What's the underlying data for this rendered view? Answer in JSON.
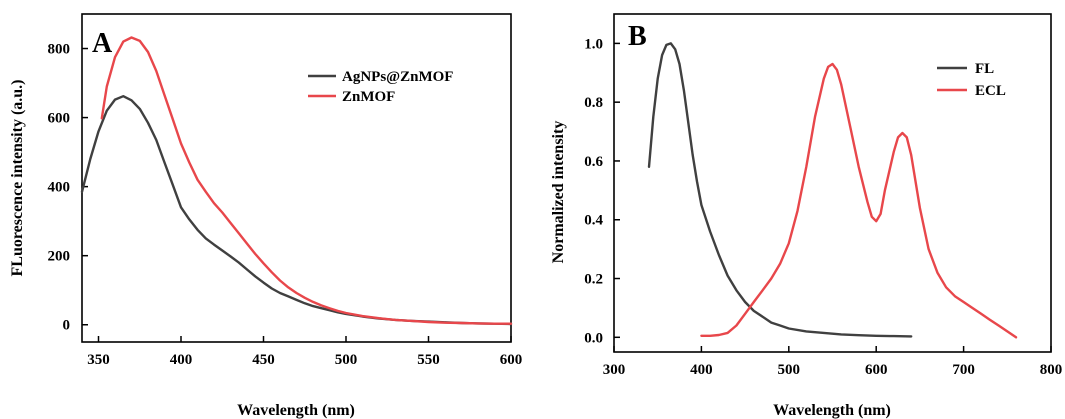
{
  "chart_data": [
    {
      "panel": "A",
      "type": "line",
      "xlabel": "Wavelength (nm)",
      "ylabel": "FLuorescence  intensity (a.u.)",
      "xlim": [
        340,
        600
      ],
      "ylim": [
        -50,
        900
      ],
      "xticks": [
        350,
        400,
        450,
        500,
        550,
        600
      ],
      "yticks": [
        0,
        200,
        400,
        600,
        800
      ],
      "legend_position": "upper right",
      "grid": false,
      "series": [
        {
          "name": "AgNPs@ZnMOF",
          "color": "#404040",
          "points": [
            [
              340,
              385
            ],
            [
              345,
              480
            ],
            [
              350,
              560
            ],
            [
              355,
              620
            ],
            [
              360,
              652
            ],
            [
              365,
              662
            ],
            [
              370,
              650
            ],
            [
              375,
              625
            ],
            [
              380,
              585
            ],
            [
              385,
              535
            ],
            [
              390,
              470
            ],
            [
              395,
              405
            ],
            [
              400,
              340
            ],
            [
              405,
              305
            ],
            [
              410,
              275
            ],
            [
              415,
              250
            ],
            [
              420,
              232
            ],
            [
              425,
              215
            ],
            [
              430,
              198
            ],
            [
              435,
              180
            ],
            [
              440,
              160
            ],
            [
              445,
              140
            ],
            [
              450,
              122
            ],
            [
              455,
              105
            ],
            [
              460,
              92
            ],
            [
              465,
              82
            ],
            [
              470,
              72
            ],
            [
              475,
              62
            ],
            [
              480,
              54
            ],
            [
              485,
              48
            ],
            [
              490,
              42
            ],
            [
              495,
              36
            ],
            [
              500,
              31
            ],
            [
              510,
              24
            ],
            [
              520,
              18
            ],
            [
              530,
              14
            ],
            [
              540,
              11
            ],
            [
              550,
              9
            ],
            [
              560,
              7
            ],
            [
              570,
              5
            ],
            [
              580,
              4
            ],
            [
              590,
              3
            ],
            [
              600,
              2
            ]
          ]
        },
        {
          "name": "ZnMOF",
          "color": "#e8474b",
          "points": [
            [
              352,
              598
            ],
            [
              355,
              690
            ],
            [
              360,
              775
            ],
            [
              365,
              820
            ],
            [
              370,
              832
            ],
            [
              375,
              822
            ],
            [
              380,
              790
            ],
            [
              385,
              735
            ],
            [
              390,
              665
            ],
            [
              395,
              595
            ],
            [
              400,
              525
            ],
            [
              405,
              470
            ],
            [
              410,
              420
            ],
            [
              415,
              385
            ],
            [
              420,
              352
            ],
            [
              425,
              325
            ],
            [
              430,
              295
            ],
            [
              435,
              265
            ],
            [
              440,
              235
            ],
            [
              445,
              205
            ],
            [
              450,
              178
            ],
            [
              455,
              152
            ],
            [
              460,
              128
            ],
            [
              465,
              108
            ],
            [
              470,
              92
            ],
            [
              475,
              78
            ],
            [
              480,
              66
            ],
            [
              485,
              56
            ],
            [
              490,
              48
            ],
            [
              495,
              40
            ],
            [
              500,
              34
            ],
            [
              510,
              25
            ],
            [
              520,
              19
            ],
            [
              530,
              14
            ],
            [
              540,
              11
            ],
            [
              550,
              8
            ],
            [
              560,
              6
            ],
            [
              570,
              5
            ],
            [
              580,
              4
            ],
            [
              590,
              3
            ],
            [
              600,
              3
            ]
          ]
        }
      ]
    },
    {
      "panel": "B",
      "type": "line",
      "xlabel": "Wavelength (nm)",
      "ylabel": "Normalized  intensity",
      "xlim": [
        300,
        800
      ],
      "ylim": [
        -0.05,
        1.1
      ],
      "xticks": [
        300,
        400,
        500,
        600,
        700,
        800
      ],
      "yticks": [
        0.0,
        0.2,
        0.4,
        0.6,
        0.8,
        1.0
      ],
      "ytick_labels": [
        "0.0",
        "0.2",
        "0.4",
        "0.6",
        "0.8",
        "1.0"
      ],
      "legend_position": "upper right",
      "grid": false,
      "series": [
        {
          "name": "FL",
          "color": "#404040",
          "points": [
            [
              340,
              0.58
            ],
            [
              345,
              0.75
            ],
            [
              350,
              0.88
            ],
            [
              355,
              0.96
            ],
            [
              360,
              0.995
            ],
            [
              365,
              1.0
            ],
            [
              370,
              0.98
            ],
            [
              375,
              0.93
            ],
            [
              380,
              0.84
            ],
            [
              385,
              0.73
            ],
            [
              390,
              0.62
            ],
            [
              395,
              0.53
            ],
            [
              400,
              0.45
            ],
            [
              410,
              0.36
            ],
            [
              420,
              0.28
            ],
            [
              430,
              0.21
            ],
            [
              440,
              0.16
            ],
            [
              450,
              0.12
            ],
            [
              460,
              0.09
            ],
            [
              470,
              0.07
            ],
            [
              480,
              0.05
            ],
            [
              490,
              0.04
            ],
            [
              500,
              0.03
            ],
            [
              520,
              0.02
            ],
            [
              540,
              0.015
            ],
            [
              560,
              0.01
            ],
            [
              580,
              0.007
            ],
            [
              600,
              0.005
            ],
            [
              620,
              0.004
            ],
            [
              640,
              0.003
            ]
          ]
        },
        {
          "name": "ECL",
          "color": "#e8474b",
          "points": [
            [
              400,
              0.005
            ],
            [
              410,
              0.005
            ],
            [
              420,
              0.008
            ],
            [
              430,
              0.015
            ],
            [
              440,
              0.04
            ],
            [
              450,
              0.08
            ],
            [
              460,
              0.12
            ],
            [
              470,
              0.16
            ],
            [
              480,
              0.2
            ],
            [
              490,
              0.25
            ],
            [
              500,
              0.32
            ],
            [
              510,
              0.43
            ],
            [
              520,
              0.58
            ],
            [
              530,
              0.75
            ],
            [
              540,
              0.88
            ],
            [
              545,
              0.92
            ],
            [
              550,
              0.93
            ],
            [
              555,
              0.91
            ],
            [
              560,
              0.86
            ],
            [
              570,
              0.72
            ],
            [
              580,
              0.58
            ],
            [
              590,
              0.46
            ],
            [
              595,
              0.41
            ],
            [
              600,
              0.395
            ],
            [
              605,
              0.42
            ],
            [
              610,
              0.5
            ],
            [
              620,
              0.63
            ],
            [
              625,
              0.68
            ],
            [
              630,
              0.695
            ],
            [
              635,
              0.68
            ],
            [
              640,
              0.62
            ],
            [
              650,
              0.44
            ],
            [
              660,
              0.3
            ],
            [
              670,
              0.22
            ],
            [
              680,
              0.17
            ],
            [
              690,
              0.14
            ],
            [
              700,
              0.12
            ],
            [
              710,
              0.1
            ],
            [
              720,
              0.08
            ],
            [
              730,
              0.06
            ],
            [
              740,
              0.04
            ],
            [
              750,
              0.02
            ],
            [
              760,
              0.0
            ]
          ]
        }
      ]
    }
  ]
}
